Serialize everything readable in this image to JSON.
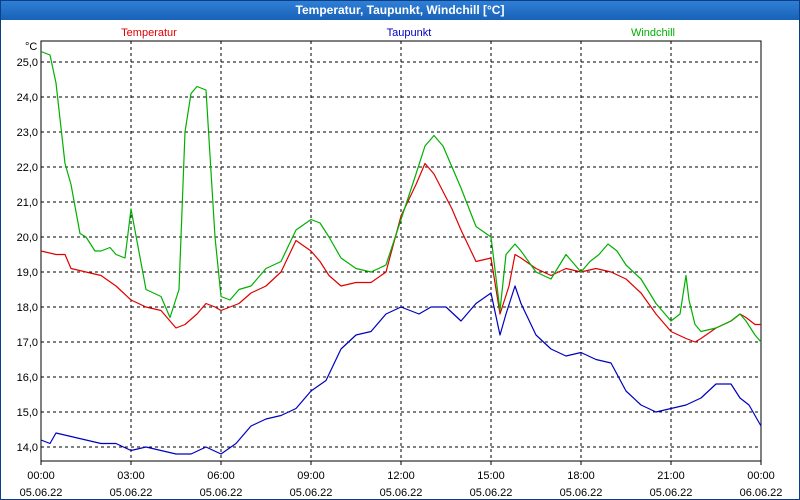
{
  "window": {
    "title": "Temperatur, Taupunkt, Windchill [°C]"
  },
  "chart_data": {
    "type": "line",
    "title": "Temperatur, Taupunkt, Windchill [°C]",
    "ylabel": "°C",
    "ylim": [
      13.6,
      25.6
    ],
    "yticks": [
      14.0,
      15.0,
      16.0,
      17.0,
      18.0,
      19.0,
      20.0,
      21.0,
      22.0,
      23.0,
      24.0,
      25.0
    ],
    "ytick_labels": [
      "14,0",
      "15,0",
      "16,0",
      "17,0",
      "18,0",
      "19,0",
      "20,0",
      "21,0",
      "22,0",
      "23,0",
      "24,0",
      "25,0"
    ],
    "xlim": [
      0,
      24
    ],
    "xticks": [
      0,
      3,
      6,
      9,
      12,
      15,
      18,
      21,
      24
    ],
    "xtick_labels": [
      {
        "time": "00:00",
        "date": "05.06.22"
      },
      {
        "time": "03:00",
        "date": "05.06.22"
      },
      {
        "time": "06:00",
        "date": "05.06.22"
      },
      {
        "time": "09:00",
        "date": "05.06.22"
      },
      {
        "time": "12:00",
        "date": "05.06.22"
      },
      {
        "time": "15:00",
        "date": "05.06.22"
      },
      {
        "time": "18:00",
        "date": "05.06.22"
      },
      {
        "time": "21:00",
        "date": "05.06.22"
      },
      {
        "time": "00:00",
        "date": "06.06.22"
      }
    ],
    "grid": true,
    "series": [
      {
        "name": "Temperatur",
        "color": "#e00000",
        "x": [
          0,
          0.5,
          0.8,
          1,
          1.5,
          2,
          2.5,
          3,
          3.5,
          4,
          4.5,
          4.8,
          5.2,
          5.5,
          5.8,
          6,
          6.3,
          6.6,
          7,
          7.5,
          8,
          8.5,
          9,
          9.3,
          9.6,
          10,
          10.5,
          11,
          11.5,
          12,
          12.5,
          12.8,
          13.1,
          13.4,
          13.7,
          14,
          14.5,
          15,
          15.3,
          15.6,
          15.8,
          16,
          16.5,
          17,
          17.5,
          18,
          18.5,
          19,
          19.5,
          20,
          20.5,
          21,
          21.5,
          21.8,
          22,
          22.5,
          23,
          23.3,
          23.5,
          23.8,
          24
        ],
        "y": [
          19.6,
          19.5,
          19.5,
          19.1,
          19.0,
          18.9,
          18.6,
          18.2,
          18.0,
          17.9,
          17.4,
          17.5,
          17.8,
          18.1,
          18.0,
          17.9,
          18.0,
          18.1,
          18.4,
          18.6,
          19.0,
          19.9,
          19.6,
          19.3,
          18.9,
          18.6,
          18.7,
          18.7,
          19.0,
          20.6,
          21.5,
          22.1,
          21.8,
          21.3,
          20.8,
          20.2,
          19.3,
          19.4,
          17.8,
          18.6,
          19.5,
          19.4,
          19.1,
          18.9,
          19.1,
          19.0,
          19.1,
          19.0,
          18.8,
          18.4,
          17.8,
          17.3,
          17.1,
          17.0,
          17.1,
          17.4,
          17.6,
          17.8,
          17.7,
          17.5,
          17.5
        ]
      },
      {
        "name": "Taupunkt",
        "color": "#0000c0",
        "x": [
          0,
          0.3,
          0.5,
          1,
          1.5,
          2,
          2.5,
          3,
          3.5,
          4,
          4.5,
          5,
          5.5,
          6,
          6.5,
          7,
          7.5,
          8,
          8.5,
          9,
          9.5,
          10,
          10.5,
          11,
          11.5,
          12,
          12.3,
          12.6,
          13,
          13.5,
          14,
          14.5,
          15,
          15.3,
          15.5,
          15.8,
          16,
          16.5,
          17,
          17.5,
          18,
          18.5,
          19,
          19.5,
          20,
          20.5,
          21,
          21.5,
          22,
          22.5,
          23,
          23.3,
          23.6,
          23.8,
          24
        ],
        "y": [
          14.2,
          14.1,
          14.4,
          14.3,
          14.2,
          14.1,
          14.1,
          13.9,
          14.0,
          13.9,
          13.8,
          13.8,
          14.0,
          13.8,
          14.1,
          14.6,
          14.8,
          14.9,
          15.1,
          15.6,
          15.9,
          16.8,
          17.2,
          17.3,
          17.8,
          18.0,
          17.9,
          17.8,
          18.0,
          18.0,
          17.6,
          18.1,
          18.4,
          17.2,
          17.8,
          18.6,
          18.1,
          17.2,
          16.8,
          16.6,
          16.7,
          16.5,
          16.4,
          15.6,
          15.2,
          15.0,
          15.1,
          15.2,
          15.4,
          15.8,
          15.8,
          15.4,
          15.2,
          14.9,
          14.6
        ]
      },
      {
        "name": "Windchill",
        "color": "#00b000",
        "x": [
          0,
          0.3,
          0.5,
          0.8,
          1,
          1.3,
          1.5,
          1.8,
          2,
          2.3,
          2.5,
          2.8,
          3,
          3.5,
          4,
          4.3,
          4.6,
          4.8,
          5,
          5.2,
          5.5,
          5.8,
          6,
          6.3,
          6.6,
          7,
          7.5,
          8,
          8.5,
          9,
          9.3,
          9.6,
          10,
          10.5,
          11,
          11.5,
          12,
          12.5,
          12.8,
          13.1,
          13.4,
          13.7,
          14,
          14.5,
          15,
          15.3,
          15.5,
          15.8,
          16,
          16.5,
          17,
          17.5,
          18,
          18.3,
          18.6,
          18.9,
          19.2,
          19.5,
          20,
          20.5,
          21,
          21.3,
          21.5,
          21.6,
          21.8,
          22,
          22.5,
          23,
          23.3,
          23.5,
          23.8,
          24
        ],
        "y": [
          25.3,
          25.2,
          24.4,
          22.1,
          21.5,
          20.1,
          20.0,
          19.6,
          19.6,
          19.7,
          19.5,
          19.4,
          20.8,
          18.5,
          18.3,
          17.7,
          18.5,
          23.0,
          24.1,
          24.3,
          24.2,
          20.0,
          18.3,
          18.2,
          18.5,
          18.6,
          19.1,
          19.3,
          20.2,
          20.5,
          20.4,
          20.0,
          19.4,
          19.1,
          19.0,
          19.2,
          20.5,
          21.8,
          22.6,
          22.9,
          22.6,
          22.0,
          21.4,
          20.3,
          20.0,
          17.9,
          19.5,
          19.8,
          19.6,
          19.0,
          18.8,
          19.5,
          19.0,
          19.3,
          19.5,
          19.8,
          19.6,
          19.2,
          18.8,
          18.1,
          17.6,
          17.8,
          18.9,
          18.2,
          17.5,
          17.3,
          17.4,
          17.6,
          17.8,
          17.6,
          17.2,
          17.0
        ]
      }
    ]
  }
}
